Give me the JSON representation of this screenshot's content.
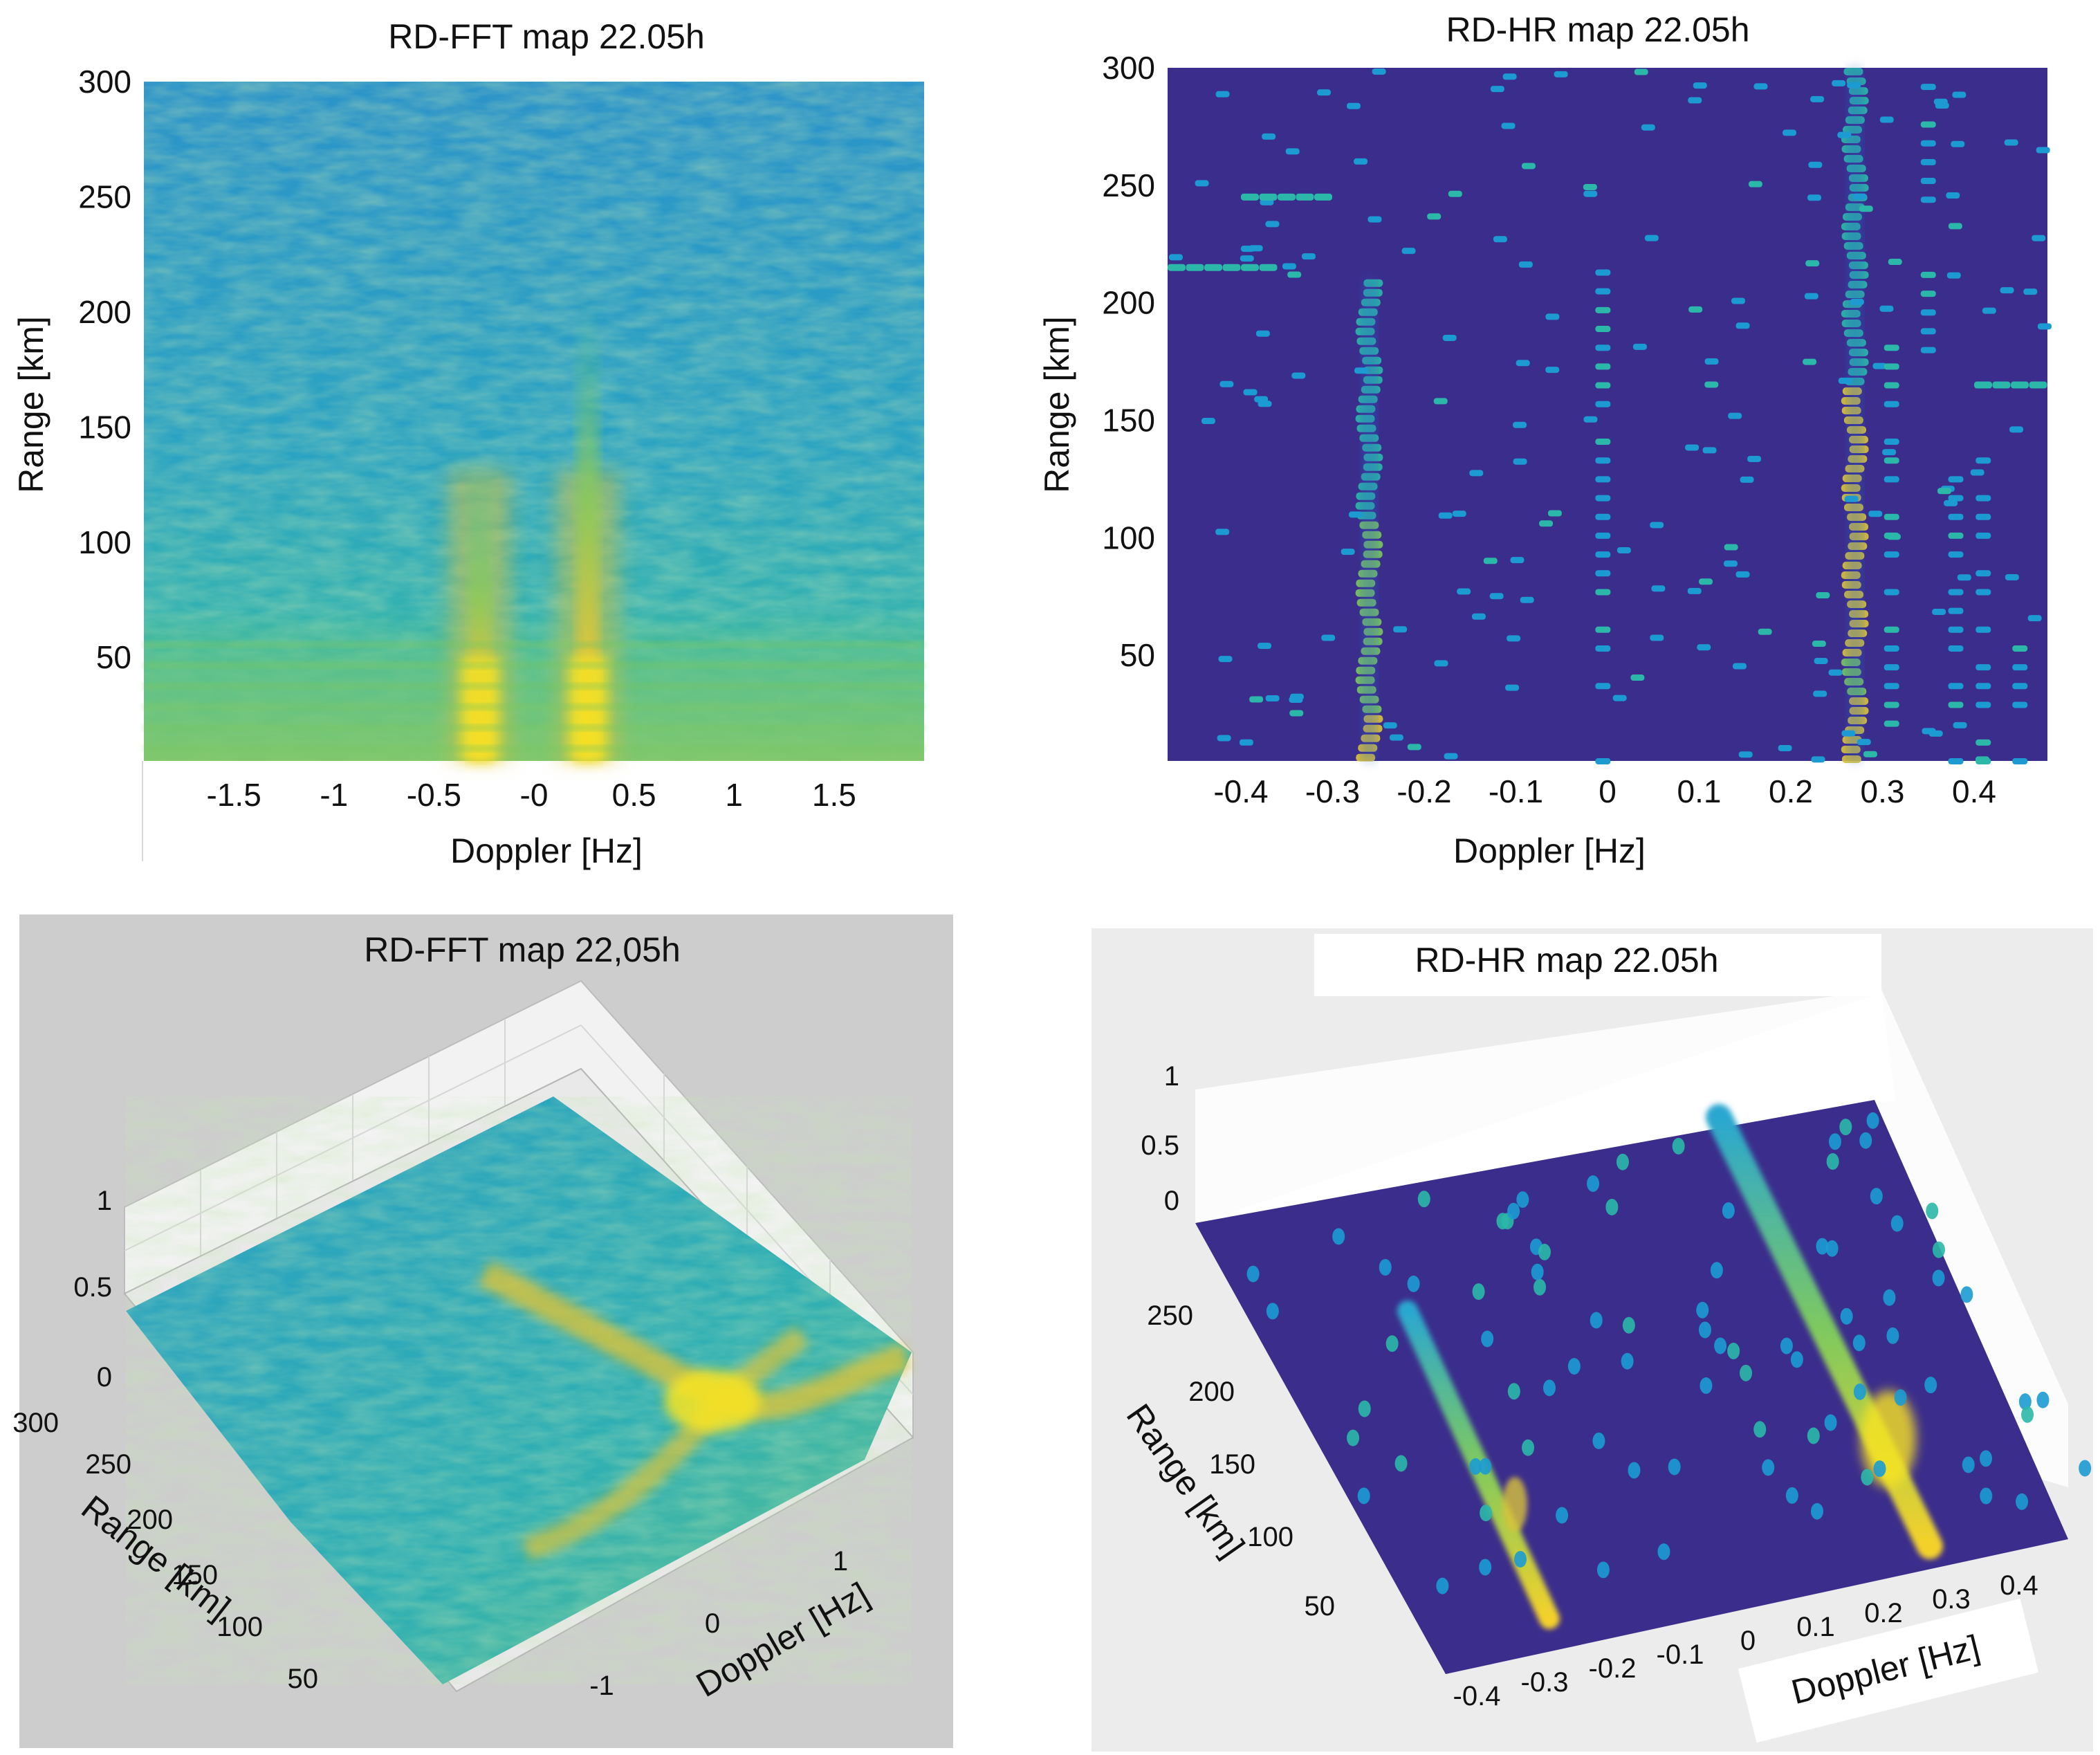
{
  "figure": {
    "description_panels": 4,
    "colormap": [
      "#3e2a8f",
      "#2a62c9",
      "#1c9bd2",
      "#2bb8a8",
      "#79c660",
      "#d9c33b",
      "#f9e420"
    ]
  },
  "chart_data": [
    {
      "id": "rd_fft_2d",
      "type": "heatmap",
      "title": "RD-FFT map 22.05h",
      "xlabel": "Doppler [Hz]",
      "ylabel": "Range [km]",
      "xlim": [
        -1.95,
        1.95
      ],
      "ylim": [
        5,
        300
      ],
      "xticks": [
        -1.5,
        -1,
        -0.5,
        0,
        0.5,
        1,
        1.5
      ],
      "xtick_labels": [
        "-1.5",
        "-1",
        "-0.5",
        "-0",
        "0.5",
        "1",
        "1.5"
      ],
      "yticks": [
        50,
        100,
        150,
        200,
        250,
        300
      ],
      "ytick_labels": [
        "50",
        "100",
        "150",
        "200",
        "250",
        "300"
      ],
      "ridges_doppler_hz": [
        -0.27,
        0.27
      ],
      "ridge_extent_km": [
        135,
        205
      ],
      "strong_clutter_below_km": 60
    },
    {
      "id": "rd_hr_2d",
      "type": "heatmap",
      "title": "RD-HR map 22.05h",
      "xlabel": "Doppler [Hz]",
      "ylabel": "Range [km]",
      "xlim": [
        -0.48,
        0.48
      ],
      "ylim": [
        5,
        300
      ],
      "xticks": [
        -0.4,
        -0.3,
        -0.2,
        -0.1,
        0,
        0.1,
        0.2,
        0.3,
        0.4
      ],
      "xtick_labels": [
        "-0.4",
        "-0.3",
        "-0.2",
        "-0.1",
        "0",
        "0.1",
        "0.2",
        "0.3",
        "0.4"
      ],
      "yticks": [
        50,
        100,
        150,
        200,
        250,
        300
      ],
      "ytick_labels": [
        "50",
        "100",
        "150",
        "200",
        "250",
        "300"
      ],
      "strong_lines": [
        {
          "doppler_hz": -0.26,
          "range_km": [
            5,
            210
          ]
        },
        {
          "doppler_hz": 0.27,
          "range_km": [
            5,
            300
          ]
        }
      ]
    },
    {
      "id": "rd_fft_3d",
      "type": "surface",
      "title": "RD-FFT map 22,05h",
      "xlabel": "Doppler [Hz]",
      "ylabel": "Range [km]",
      "zlim": [
        0,
        1
      ],
      "zticks": [
        "0",
        "0.5",
        "1"
      ],
      "range_ticks": [
        "50",
        "100",
        "150",
        "200",
        "250",
        "300"
      ],
      "doppler_ticks": [
        "-1",
        "0",
        "1"
      ]
    },
    {
      "id": "rd_hr_3d",
      "type": "surface",
      "title": "RD-HR map 22.05h",
      "xlabel": "Doppler [Hz]",
      "ylabel": "Range [km]",
      "zlim": [
        0,
        1
      ],
      "zticks": [
        "0",
        "0.5",
        "1"
      ],
      "range_ticks": [
        "50",
        "100",
        "150",
        "200",
        "250"
      ],
      "doppler_ticks": [
        "-0.4",
        "-0.3",
        "-0.2",
        "-0.1",
        "0",
        "0.1",
        "0.2",
        "0.3",
        "0.4"
      ]
    }
  ]
}
